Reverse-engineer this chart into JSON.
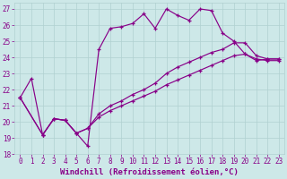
{
  "xlabel": "Windchill (Refroidissement éolien,°C)",
  "xlim": [
    -0.5,
    23.5
  ],
  "ylim": [
    18,
    27.4
  ],
  "xticks": [
    0,
    1,
    2,
    3,
    4,
    5,
    6,
    7,
    8,
    9,
    10,
    11,
    12,
    13,
    14,
    15,
    16,
    17,
    18,
    19,
    20,
    21,
    22,
    23
  ],
  "yticks": [
    18,
    19,
    20,
    21,
    22,
    23,
    24,
    25,
    26,
    27
  ],
  "bg_color": "#cde8e8",
  "line_color": "#880088",
  "grid_color": "#b0d0d0",
  "series": [
    {
      "x": [
        0,
        1,
        2,
        3,
        4,
        5,
        6,
        7,
        8,
        9,
        10,
        11,
        12,
        13,
        14,
        15,
        16,
        17,
        18,
        19,
        20,
        21,
        22,
        23
      ],
      "y": [
        21.5,
        22.7,
        19.2,
        20.2,
        20.1,
        19.3,
        18.5,
        24.5,
        25.8,
        25.9,
        26.1,
        26.7,
        25.8,
        27.0,
        26.6,
        26.3,
        27.0,
        26.9,
        25.5,
        25.0,
        24.2,
        23.8,
        23.9,
        23.9
      ]
    },
    {
      "x": [
        0,
        2,
        3,
        4,
        5,
        6,
        7,
        8,
        9,
        10,
        11,
        12,
        13,
        14,
        15,
        16,
        17,
        18,
        19,
        20,
        21,
        22,
        23
      ],
      "y": [
        21.5,
        19.2,
        20.2,
        20.1,
        19.3,
        19.6,
        20.5,
        21.0,
        21.3,
        21.7,
        22.0,
        22.4,
        23.0,
        23.4,
        23.7,
        24.0,
        24.3,
        24.5,
        24.9,
        24.9,
        24.1,
        23.9,
        23.9
      ]
    },
    {
      "x": [
        0,
        2,
        3,
        4,
        5,
        6,
        7,
        8,
        9,
        10,
        11,
        12,
        13,
        14,
        15,
        16,
        17,
        18,
        19,
        20,
        21,
        22,
        23
      ],
      "y": [
        21.5,
        19.2,
        20.2,
        20.1,
        19.3,
        19.6,
        20.3,
        20.7,
        21.0,
        21.3,
        21.6,
        21.9,
        22.3,
        22.6,
        22.9,
        23.2,
        23.5,
        23.8,
        24.1,
        24.2,
        23.9,
        23.8,
        23.8
      ]
    }
  ],
  "font_family": "monospace",
  "tick_fontsize": 5.5,
  "xlabel_fontsize": 6.5
}
